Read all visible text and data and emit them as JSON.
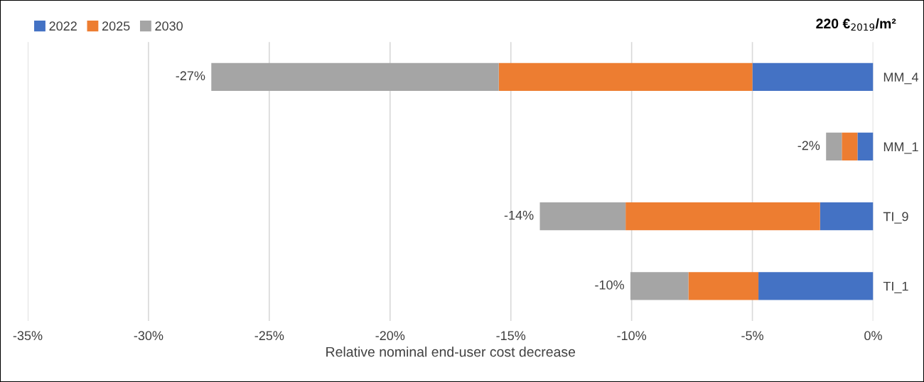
{
  "chart_data": {
    "type": "bar",
    "orientation": "horizontal",
    "stacked": true,
    "title": "220 €$_{2019}$/m²",
    "xlabel": "Relative nominal end-user cost decrease",
    "categories": [
      "MM_4",
      "MM_1",
      "TI_9",
      "TI_1"
    ],
    "series": [
      {
        "name": "2022",
        "color": "#4472c4",
        "values": [
          -5.0,
          -0.65,
          -2.2,
          -4.75
        ]
      },
      {
        "name": "2025",
        "color": "#ed7d31",
        "values": [
          -10.5,
          -0.65,
          -8.05,
          -2.9
        ]
      },
      {
        "name": "2030",
        "color": "#a5a5a5",
        "values": [
          -11.9,
          -0.65,
          -3.55,
          -2.4
        ]
      }
    ],
    "totals": [
      "-27%",
      "-2%",
      "-14%",
      "-10%"
    ],
    "xlim": [
      -35,
      0
    ],
    "xticks": [
      {
        "value": -35,
        "label": "-35%"
      },
      {
        "value": -30,
        "label": "-30%"
      },
      {
        "value": -25,
        "label": "-25%"
      },
      {
        "value": -20,
        "label": "-20%"
      },
      {
        "value": -15,
        "label": "-15%"
      },
      {
        "value": -10,
        "label": "-10%"
      },
      {
        "value": -5,
        "label": "-5%"
      },
      {
        "value": 0,
        "label": "0%"
      }
    ],
    "grid": "x",
    "legend": "top left"
  }
}
